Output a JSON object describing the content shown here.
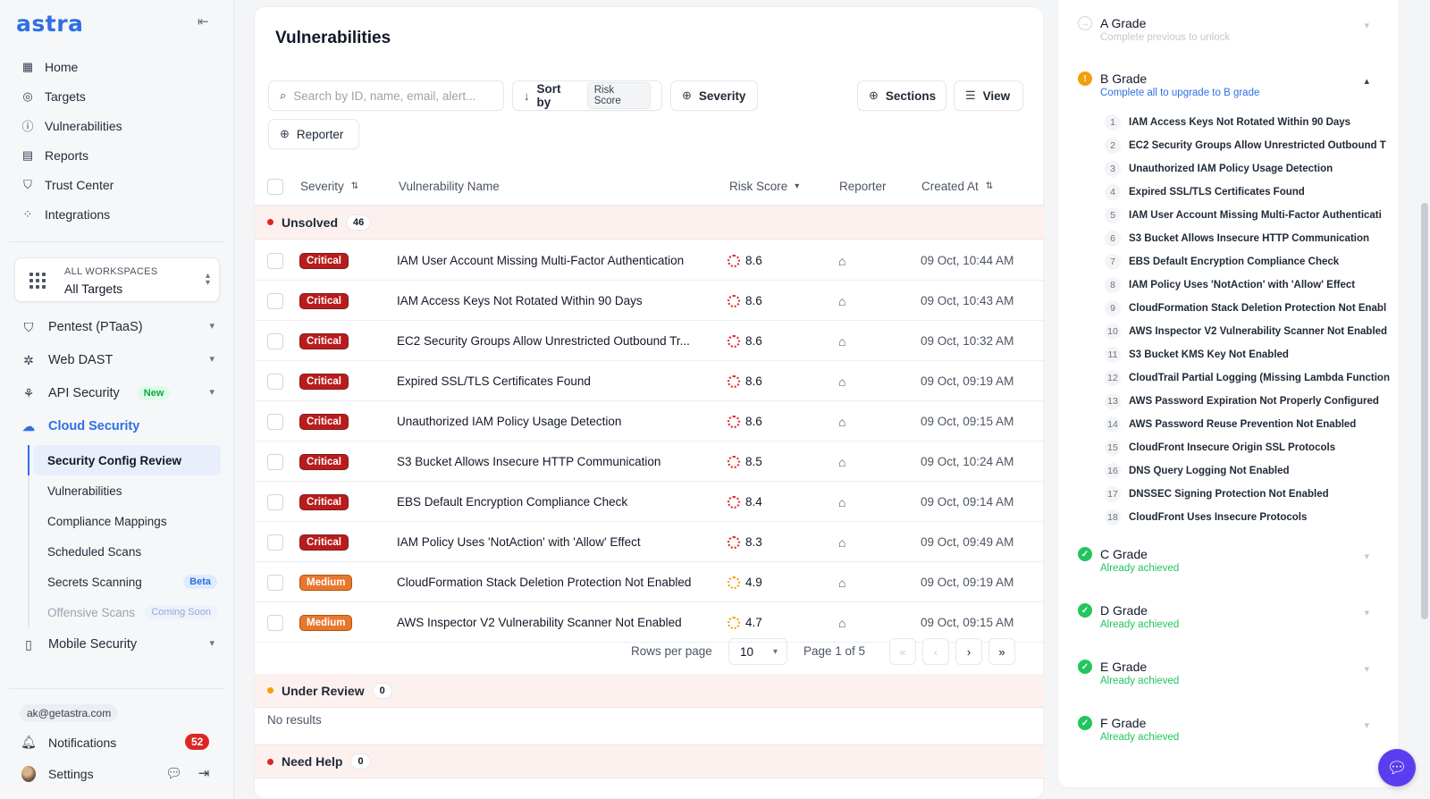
{
  "app": {
    "logo": "astra"
  },
  "sidebar": {
    "nav": [
      {
        "label": "Home",
        "icon": "home-icon"
      },
      {
        "label": "Targets",
        "icon": "target-icon"
      },
      {
        "label": "Vulnerabilities",
        "icon": "alert-icon"
      },
      {
        "label": "Reports",
        "icon": "report-icon"
      },
      {
        "label": "Trust Center",
        "icon": "shield-icon"
      },
      {
        "label": "Integrations",
        "icon": "integrations-icon"
      }
    ],
    "workspace": {
      "label": "ALL WORKSPACES",
      "value": "All Targets"
    },
    "groups": {
      "pentest": "Pentest (PTaaS)",
      "webdast": "Web DAST",
      "api": "API Security",
      "api_badge": "New",
      "cloud": "Cloud Security",
      "mobile": "Mobile Security"
    },
    "cloud_items": [
      {
        "label": "Security Config Review"
      },
      {
        "label": "Vulnerabilities"
      },
      {
        "label": "Compliance Mappings"
      },
      {
        "label": "Scheduled Scans"
      },
      {
        "label": "Secrets Scanning",
        "badge": "Beta"
      },
      {
        "label": "Offensive Scans",
        "badge": "Coming Soon"
      }
    ],
    "email": "ak@getastra.com",
    "notifications_label": "Notifications",
    "notifications_count": "52",
    "settings_label": "Settings"
  },
  "main": {
    "title": "Vulnerabilities",
    "search_placeholder": "Search by ID, name, email, alert...",
    "sort_label": "Sort by",
    "sort_value": "Risk Score",
    "severity_filter": "Severity",
    "sections_label": "Sections",
    "view_label": "View",
    "reporter_filter": "Reporter",
    "columns": {
      "severity": "Severity",
      "name": "Vulnerability Name",
      "risk": "Risk Score",
      "reporter": "Reporter",
      "created": "Created At"
    },
    "sections": [
      {
        "label": "Unsolved",
        "count": "46",
        "color": "#dc2626"
      },
      {
        "label": "Under Review",
        "count": "0",
        "color": "#f59e0b"
      },
      {
        "label": "Need Help",
        "count": "0",
        "color": "#dc2626"
      }
    ],
    "rows": [
      {
        "severity": "Critical",
        "name": "IAM User Account Missing Multi-Factor Authentication",
        "risk": "8.6",
        "created": "09 Oct, 10:44 AM"
      },
      {
        "severity": "Critical",
        "name": "IAM Access Keys Not Rotated Within 90 Days",
        "risk": "8.6",
        "created": "09 Oct, 10:43 AM"
      },
      {
        "severity": "Critical",
        "name": "EC2 Security Groups Allow Unrestricted Outbound Tr...",
        "risk": "8.6",
        "created": "09 Oct, 10:32 AM"
      },
      {
        "severity": "Critical",
        "name": "Expired SSL/TLS Certificates Found",
        "risk": "8.6",
        "created": "09 Oct, 09:19 AM"
      },
      {
        "severity": "Critical",
        "name": "Unauthorized IAM Policy Usage Detection",
        "risk": "8.6",
        "created": "09 Oct, 09:15 AM"
      },
      {
        "severity": "Critical",
        "name": "S3 Bucket Allows Insecure HTTP Communication",
        "risk": "8.5",
        "created": "09 Oct, 10:24 AM"
      },
      {
        "severity": "Critical",
        "name": "EBS Default Encryption Compliance Check",
        "risk": "8.4",
        "created": "09 Oct, 09:14 AM"
      },
      {
        "severity": "Critical",
        "name": "IAM Policy Uses 'NotAction' with 'Allow' Effect",
        "risk": "8.3",
        "created": "09 Oct, 09:49 AM"
      },
      {
        "severity": "Medium",
        "name": "CloudFormation Stack Deletion Protection Not Enabled",
        "risk": "4.9",
        "created": "09 Oct, 09:19 AM"
      },
      {
        "severity": "Medium",
        "name": "AWS Inspector V2 Vulnerability Scanner Not Enabled",
        "risk": "4.7",
        "created": "09 Oct, 09:15 AM"
      }
    ],
    "pager": {
      "rows_per_page_label": "Rows per page",
      "rows_per_page": "10",
      "page_info": "Page 1 of 5"
    },
    "no_results": "No results"
  },
  "grades": {
    "a": {
      "title": "A Grade",
      "sub": "Complete previous to unlock"
    },
    "b": {
      "title": "B Grade",
      "sub": "Complete all to upgrade to B grade"
    },
    "b_items": [
      "IAM Access Keys Not Rotated Within 90 Days",
      "EC2 Security Groups Allow Unrestricted Outbound T",
      "Unauthorized IAM Policy Usage Detection",
      "Expired SSL/TLS Certificates Found",
      "IAM User Account Missing Multi-Factor Authenticati",
      "S3 Bucket Allows Insecure HTTP Communication",
      "EBS Default Encryption Compliance Check",
      "IAM Policy Uses 'NotAction' with 'Allow' Effect",
      "CloudFormation Stack Deletion Protection Not Enabl",
      "AWS Inspector V2 Vulnerability Scanner Not Enabled",
      "S3 Bucket KMS Key Not Enabled",
      "CloudTrail Partial Logging (Missing Lambda Function",
      "AWS Password Expiration Not Properly Configured",
      "AWS Password Reuse Prevention Not Enabled",
      "CloudFront Insecure Origin SSL Protocols",
      "DNS Query Logging Not Enabled",
      "DNSSEC Signing Protection Not Enabled",
      "CloudFront Uses Insecure Protocols"
    ],
    "c": {
      "title": "C Grade",
      "sub": "Already achieved"
    },
    "d": {
      "title": "D Grade",
      "sub": "Already achieved"
    },
    "e": {
      "title": "E Grade",
      "sub": "Already achieved"
    },
    "f": {
      "title": "F Grade",
      "sub": "Already achieved"
    }
  },
  "colors": {
    "accent": "#2f6fe4",
    "critical": "#b91c1c",
    "medium": "#e8772e",
    "success": "#22c55e",
    "warning": "#f59e0b"
  }
}
